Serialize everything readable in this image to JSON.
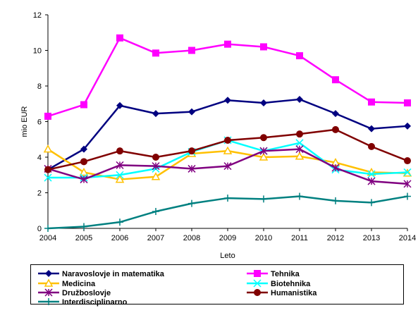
{
  "chart_data": {
    "type": "line",
    "title": "",
    "xlabel": "Leto",
    "ylabel": "mio EUR",
    "ylim": [
      0,
      12
    ],
    "yticks": [
      "0",
      "2",
      "4",
      "6",
      "8",
      "10",
      "12"
    ],
    "categories": [
      "2004",
      "2005",
      "2006",
      "2007",
      "2008",
      "2009",
      "2010",
      "2011",
      "2012",
      "2013",
      "2014"
    ],
    "grid": false,
    "legend_position": "bottom",
    "series": [
      {
        "name": "Naravoslovje in matematika",
        "color": "#000080",
        "marker": "diamond",
        "values": [
          3.3,
          4.45,
          6.9,
          6.45,
          6.55,
          7.2,
          7.05,
          7.25,
          6.45,
          5.6,
          5.75
        ]
      },
      {
        "name": "Tehnika",
        "color": "#FF00FF",
        "marker": "square",
        "values": [
          6.3,
          6.95,
          10.7,
          9.85,
          10.0,
          10.35,
          10.2,
          9.7,
          8.35,
          7.1,
          7.05
        ]
      },
      {
        "name": "Medicina",
        "color": "#FFC000",
        "marker": "triangle",
        "values": [
          4.45,
          3.15,
          2.75,
          2.9,
          4.2,
          4.35,
          4.0,
          4.05,
          3.7,
          3.15,
          3.1
        ]
      },
      {
        "name": "Biotehnika",
        "color": "#00FFFF",
        "marker": "x",
        "values": [
          2.85,
          2.85,
          3.0,
          3.35,
          4.3,
          4.95,
          4.35,
          4.8,
          3.3,
          3.05,
          3.15
        ]
      },
      {
        "name": "Družboslovje",
        "color": "#800080",
        "marker": "star",
        "values": [
          3.35,
          2.75,
          3.55,
          3.5,
          3.35,
          3.5,
          4.35,
          4.45,
          3.4,
          2.65,
          2.5
        ]
      },
      {
        "name": "Humanistika",
        "color": "#800000",
        "marker": "circle",
        "values": [
          3.3,
          3.75,
          4.35,
          4.0,
          4.35,
          4.95,
          5.1,
          5.3,
          5.55,
          4.6,
          3.8
        ]
      },
      {
        "name": "Interdisciplinarno",
        "color": "#008080",
        "marker": "plus",
        "values": [
          0.0,
          0.1,
          0.35,
          0.95,
          1.4,
          1.7,
          1.65,
          1.8,
          1.55,
          1.45,
          1.8
        ]
      }
    ]
  }
}
